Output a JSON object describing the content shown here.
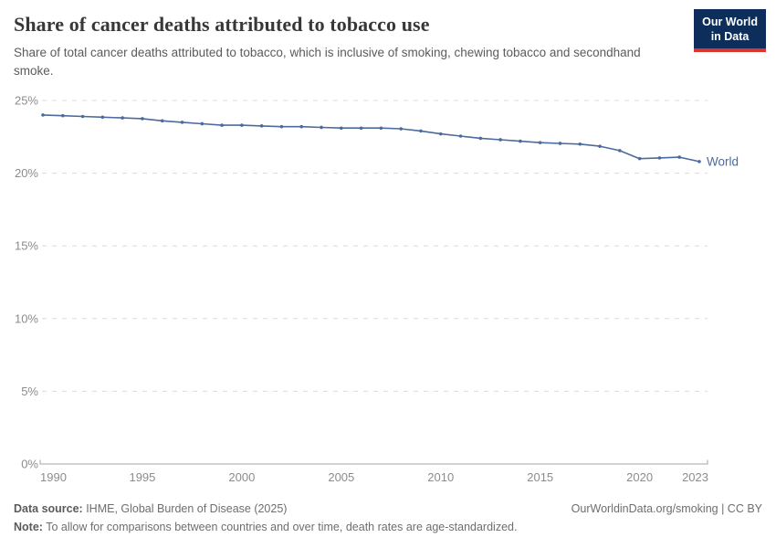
{
  "header": {
    "title": "Share of cancer deaths attributed to tobacco use",
    "subtitle": "Share of total cancer deaths attributed to tobacco, which is inclusive of smoking, chewing tobacco and secondhand smoke.",
    "logo": {
      "line1": "Our World",
      "line2": "in Data"
    }
  },
  "chart_data": {
    "type": "line",
    "title": "Share of cancer deaths attributed to tobacco use",
    "xlabel": "",
    "ylabel": "",
    "ylim": [
      0,
      25
    ],
    "yticks": [
      0,
      5,
      10,
      15,
      20,
      25
    ],
    "ytick_suffix": "%",
    "xticks": [
      1990,
      1995,
      2000,
      2005,
      2010,
      2015,
      2020,
      2023
    ],
    "grid": "horizontal-dashed",
    "legend_position": "end-of-line-label",
    "x": [
      1990,
      1991,
      1992,
      1993,
      1994,
      1995,
      1996,
      1997,
      1998,
      1999,
      2000,
      2001,
      2002,
      2003,
      2004,
      2005,
      2006,
      2007,
      2008,
      2009,
      2010,
      2011,
      2012,
      2013,
      2014,
      2015,
      2016,
      2017,
      2018,
      2019,
      2020,
      2021,
      2022,
      2023
    ],
    "series": [
      {
        "name": "World",
        "color": "#4c6a9c",
        "values": [
          24.0,
          23.95,
          23.9,
          23.85,
          23.8,
          23.75,
          23.6,
          23.5,
          23.4,
          23.3,
          23.3,
          23.25,
          23.2,
          23.2,
          23.15,
          23.1,
          23.1,
          23.1,
          23.05,
          22.9,
          22.7,
          22.55,
          22.4,
          22.3,
          22.2,
          22.1,
          22.05,
          22.0,
          21.85,
          21.55,
          21.0,
          21.05,
          21.1,
          20.8
        ]
      }
    ]
  },
  "colors": {
    "line": "#4c6a9c",
    "grid": "#dcdcdc",
    "axis": "#a5a5a5",
    "tick_label": "#8c8c8c",
    "logo_bg": "#0d2e5a",
    "logo_accent": "#dc352f"
  },
  "footer": {
    "datasource_label": "Data source:",
    "datasource_text": " IHME, Global Burden of Disease (2025)",
    "credit": "OurWorldinData.org/smoking | CC BY",
    "note_label": "Note:",
    "note_text": " To allow for comparisons between countries and over time, death rates are age-standardized."
  }
}
